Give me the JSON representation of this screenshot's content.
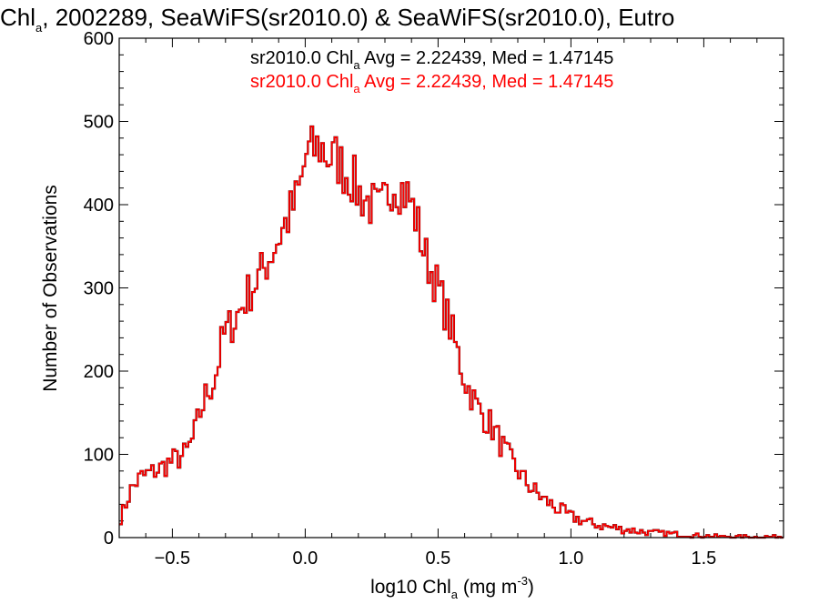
{
  "chart_data": {
    "type": "histogram",
    "title": {
      "prefix": "Chl",
      "prefix_subscript": "a",
      "rest": ", 2002289, SeaWiFS(sr2010.0) & SeaWiFS(sr2010.0), Eutro"
    },
    "xlabel": {
      "prefix": "log10 Chl",
      "subscript": "a",
      "units_prefix": " (mg m",
      "units_superscript": "-3",
      "units_suffix": ")"
    },
    "ylabel": "Number of Observations",
    "xlim": [
      -0.7,
      1.8
    ],
    "ylim": [
      0,
      600
    ],
    "x_ticks": [
      {
        "value": -0.5,
        "label": "−0.5"
      },
      {
        "value": 0.0,
        "label": "0.0"
      },
      {
        "value": 0.5,
        "label": "0.5"
      },
      {
        "value": 1.0,
        "label": "1.0"
      },
      {
        "value": 1.5,
        "label": "1.5"
      }
    ],
    "x_minor_step": 0.1,
    "y_ticks": [
      0,
      100,
      200,
      300,
      400,
      500,
      600
    ],
    "y_minor_step": 20,
    "bin_width": 0.01,
    "bin_start": -0.7,
    "anchors": [
      [
        -0.7,
        20
      ],
      [
        -0.68,
        35
      ],
      [
        -0.66,
        55
      ],
      [
        -0.64,
        65
      ],
      [
        -0.62,
        72
      ],
      [
        -0.6,
        75
      ],
      [
        -0.55,
        82
      ],
      [
        -0.5,
        92
      ],
      [
        -0.45,
        100
      ],
      [
        -0.42,
        120
      ],
      [
        -0.4,
        145
      ],
      [
        -0.37,
        175
      ],
      [
        -0.34,
        190
      ],
      [
        -0.31,
        240
      ],
      [
        -0.28,
        255
      ],
      [
        -0.25,
        270
      ],
      [
        -0.22,
        290
      ],
      [
        -0.19,
        305
      ],
      [
        -0.16,
        320
      ],
      [
        -0.13,
        340
      ],
      [
        -0.1,
        360
      ],
      [
        -0.07,
        380
      ],
      [
        -0.04,
        400
      ],
      [
        -0.01,
        430
      ],
      [
        0.0,
        460
      ],
      [
        0.03,
        465
      ],
      [
        0.06,
        470
      ],
      [
        0.09,
        455
      ],
      [
        0.12,
        455
      ],
      [
        0.15,
        440
      ],
      [
        0.18,
        430
      ],
      [
        0.2,
        415
      ],
      [
        0.25,
        400
      ],
      [
        0.28,
        390
      ],
      [
        0.31,
        410
      ],
      [
        0.33,
        430
      ],
      [
        0.36,
        420
      ],
      [
        0.39,
        410
      ],
      [
        0.42,
        380
      ],
      [
        0.45,
        340
      ],
      [
        0.5,
        300
      ],
      [
        0.55,
        250
      ],
      [
        0.6,
        190
      ],
      [
        0.65,
        155
      ],
      [
        0.7,
        135
      ],
      [
        0.75,
        105
      ],
      [
        0.8,
        80
      ],
      [
        0.85,
        60
      ],
      [
        0.9,
        45
      ],
      [
        0.95,
        35
      ],
      [
        1.0,
        25
      ],
      [
        1.1,
        15
      ],
      [
        1.2,
        10
      ],
      [
        1.3,
        6
      ],
      [
        1.4,
        4
      ],
      [
        1.5,
        2
      ],
      [
        1.6,
        1
      ],
      [
        1.8,
        1
      ]
    ],
    "series": [
      {
        "label_prefix": "sr2010.0 Chl",
        "label_subscript": "a",
        "label_suffix": " Avg = 2.22439, Med = 1.47145",
        "color": "#000000",
        "avg": 2.22439,
        "median": 1.47145
      },
      {
        "label_prefix": "sr2010.0 Chl",
        "label_subscript": "a",
        "label_suffix": " Avg = 2.22439, Med = 1.47145",
        "color": "#ff0000",
        "avg": 2.22439,
        "median": 1.47145
      }
    ]
  }
}
